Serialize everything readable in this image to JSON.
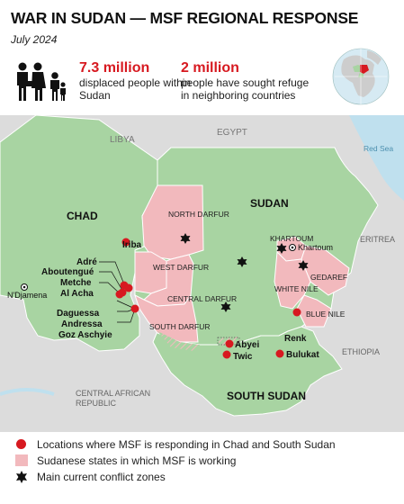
{
  "header": {
    "title": "WAR IN SUDAN — MSF REGIONAL RESPONSE",
    "date": "July 2024"
  },
  "stats": [
    {
      "value": "7.3 million",
      "description": "displaced people within Sudan"
    },
    {
      "value": "2 million",
      "description": "people have sought refuge in neighboring countries"
    }
  ],
  "map": {
    "country_labels": {
      "chad": "CHAD",
      "sudan": "SUDAN",
      "south_sudan": "SOUTH SUDAN",
      "libya": "LIBYA",
      "egypt": "EGYPT",
      "eritrea": "ERITREA",
      "ethiopia": "ETHIOPIA",
      "car": "CENTRAL AFRICAN REPUBLIC",
      "red_sea": "Red Sea"
    },
    "state_labels": {
      "north_darfur": "NORTH DARFUR",
      "west_darfur": "WEST DARFUR",
      "central_darfur": "CENTRAL DARFUR",
      "south_darfur": "SOUTH DARFUR",
      "khartoum": "KHARTOUM",
      "white_nile": "WHITE NILE",
      "blue_nile": "BLUE NILE",
      "gedaref": "GEDAREF"
    },
    "capitals": {
      "khartoum": "Khartoum",
      "ndjamena": "N'Djamena"
    },
    "locations": {
      "iriba": "Iriba",
      "adre": "Adré",
      "aboutengue": "Aboutengué",
      "metche": "Metche",
      "al_acha": "Al Acha",
      "daguessa": "Daguessa",
      "andressa": "Andressa",
      "goz_aschyie": "Goz Aschyie",
      "abyei": "Abyei",
      "twic": "Twic",
      "bulukat": "Bulukat",
      "renk": "Renk"
    },
    "colors": {
      "focus_countries": "#a8d4a2",
      "other_land": "#dcdcdc",
      "msf_states": "#f2b9bd",
      "msf_location": "#d71920",
      "water": "#bfe0ee",
      "conflict": "#111111"
    }
  },
  "legend": {
    "locations": "Locations where MSF is responding in Chad and South Sudan",
    "states": "Sudanese states in which MSF is working",
    "conflict": "Main current conflict zones"
  }
}
